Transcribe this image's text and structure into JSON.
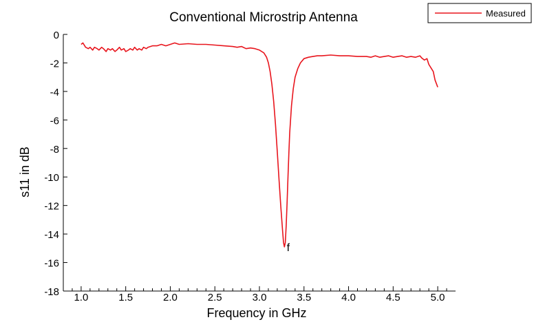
{
  "chart_data": {
    "type": "line",
    "title": "Conventional Microstrip Antenna",
    "xlabel": "Frequency in GHz",
    "ylabel": "s11 in dB",
    "xlim": [
      0.8,
      5.2
    ],
    "ylim": [
      -18,
      0
    ],
    "xticks": [
      1.0,
      1.5,
      2.0,
      2.5,
      3.0,
      3.5,
      4.0,
      4.5,
      5.0
    ],
    "xtick_labels": [
      "1.0",
      "1.5",
      "2.0",
      "2.5",
      "3.0",
      "3.5",
      "4.0",
      "4.5",
      "5.0"
    ],
    "yticks": [
      0,
      -2,
      -4,
      -6,
      -8,
      -10,
      -12,
      -14,
      -16,
      -18
    ],
    "ytick_labels": [
      "0",
      "-2",
      "-4",
      "-6",
      "-8",
      "-10",
      "-12",
      "-14",
      "-16",
      "-18"
    ],
    "grid": false,
    "legend": {
      "position": "top-right",
      "entries": [
        "Measured"
      ]
    },
    "annotations": [
      {
        "text": "f",
        "x": 3.3,
        "y": -15.1
      }
    ],
    "series": [
      {
        "name": "Measured",
        "color": "#e8141c",
        "x": [
          1.0,
          1.02,
          1.05,
          1.08,
          1.1,
          1.13,
          1.15,
          1.18,
          1.2,
          1.23,
          1.25,
          1.28,
          1.3,
          1.33,
          1.35,
          1.38,
          1.4,
          1.43,
          1.45,
          1.48,
          1.5,
          1.53,
          1.55,
          1.58,
          1.6,
          1.63,
          1.65,
          1.68,
          1.7,
          1.73,
          1.75,
          1.8,
          1.85,
          1.9,
          1.95,
          2.0,
          2.05,
          2.1,
          2.2,
          2.3,
          2.4,
          2.5,
          2.6,
          2.7,
          2.75,
          2.8,
          2.85,
          2.9,
          2.95,
          3.0,
          3.05,
          3.08,
          3.1,
          3.12,
          3.14,
          3.16,
          3.18,
          3.2,
          3.22,
          3.24,
          3.26,
          3.27,
          3.28,
          3.29,
          3.3,
          3.31,
          3.32,
          3.33,
          3.34,
          3.36,
          3.38,
          3.4,
          3.43,
          3.46,
          3.5,
          3.55,
          3.6,
          3.65,
          3.7,
          3.8,
          3.9,
          4.0,
          4.1,
          4.2,
          4.25,
          4.3,
          4.35,
          4.4,
          4.45,
          4.5,
          4.55,
          4.6,
          4.65,
          4.7,
          4.75,
          4.8,
          4.82,
          4.85,
          4.88,
          4.9,
          4.92,
          4.95,
          4.97,
          5.0
        ],
        "y": [
          -0.7,
          -0.6,
          -0.9,
          -1.0,
          -0.9,
          -1.1,
          -0.9,
          -1.0,
          -1.1,
          -0.9,
          -1.0,
          -1.2,
          -1.0,
          -1.1,
          -1.0,
          -1.2,
          -1.1,
          -0.9,
          -1.1,
          -1.0,
          -1.2,
          -1.1,
          -1.0,
          -1.1,
          -0.9,
          -1.1,
          -1.0,
          -1.1,
          -0.9,
          -1.0,
          -0.9,
          -0.8,
          -0.8,
          -0.7,
          -0.8,
          -0.7,
          -0.6,
          -0.7,
          -0.65,
          -0.7,
          -0.7,
          -0.75,
          -0.8,
          -0.85,
          -0.9,
          -0.85,
          -1.0,
          -0.95,
          -1.0,
          -1.1,
          -1.3,
          -1.6,
          -2.0,
          -2.6,
          -3.5,
          -4.7,
          -6.3,
          -8.2,
          -10.2,
          -12.1,
          -13.8,
          -14.6,
          -14.9,
          -14.6,
          -13.4,
          -11.8,
          -10.0,
          -8.3,
          -6.9,
          -5.0,
          -3.8,
          -3.0,
          -2.4,
          -2.0,
          -1.7,
          -1.6,
          -1.55,
          -1.5,
          -1.5,
          -1.45,
          -1.5,
          -1.5,
          -1.55,
          -1.55,
          -1.6,
          -1.5,
          -1.6,
          -1.55,
          -1.5,
          -1.6,
          -1.55,
          -1.5,
          -1.6,
          -1.55,
          -1.6,
          -1.5,
          -1.65,
          -1.8,
          -1.7,
          -2.1,
          -2.3,
          -2.6,
          -3.2,
          -3.7
        ]
      }
    ]
  }
}
